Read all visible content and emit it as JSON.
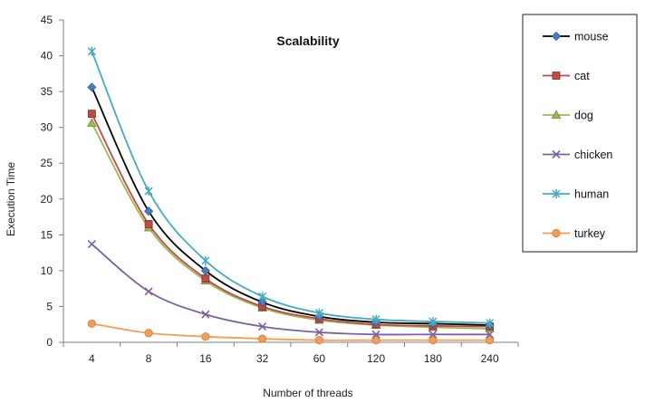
{
  "chart_data": {
    "type": "line",
    "title": "Scalability",
    "xlabel": "Number of threads",
    "ylabel": "Execution Time",
    "categories": [
      "4",
      "8",
      "16",
      "32",
      "60",
      "120",
      "180",
      "240"
    ],
    "ylim": [
      0,
      45
    ],
    "yticks": [
      0,
      5,
      10,
      15,
      20,
      25,
      30,
      35,
      40,
      45
    ],
    "grid": false,
    "legend_position": "top-right",
    "series": [
      {
        "name": "mouse",
        "color": "#000000",
        "marker_color": "#4a7ebb",
        "marker": "diamond",
        "values": [
          35.6,
          18.3,
          10.0,
          5.6,
          3.6,
          2.8,
          2.6,
          2.4
        ]
      },
      {
        "name": "cat",
        "color": "#be4b48",
        "marker_color": "#be4b48",
        "marker": "square",
        "values": [
          31.9,
          16.5,
          8.9,
          5.0,
          3.3,
          2.5,
          2.3,
          2.2
        ]
      },
      {
        "name": "dog",
        "color": "#98b954",
        "marker_color": "#98b954",
        "marker": "triangle",
        "values": [
          30.6,
          16.0,
          8.6,
          4.8,
          3.1,
          2.4,
          2.1,
          1.9
        ]
      },
      {
        "name": "chicken",
        "color": "#7d60a0",
        "marker_color": "#7d60a0",
        "marker": "x",
        "values": [
          13.7,
          7.1,
          3.9,
          2.2,
          1.4,
          1.1,
          1.1,
          1.1
        ]
      },
      {
        "name": "human",
        "color": "#46aac5",
        "marker_color": "#46aac5",
        "marker": "star",
        "values": [
          40.6,
          21.1,
          11.4,
          6.4,
          4.1,
          3.2,
          2.9,
          2.7
        ]
      },
      {
        "name": "turkey",
        "color": "#f59d56",
        "marker_color": "#f59d56",
        "marker": "circle",
        "values": [
          2.6,
          1.3,
          0.8,
          0.5,
          0.3,
          0.3,
          0.3,
          0.3
        ]
      }
    ]
  }
}
